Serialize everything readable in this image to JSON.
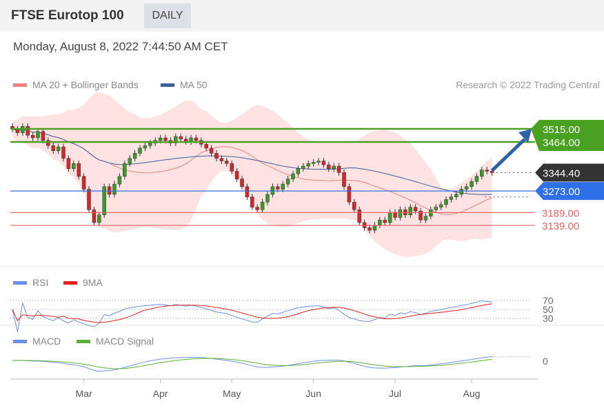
{
  "header": {
    "title": "FTSE Eurotop 100",
    "period": "DAILY"
  },
  "timestamp": "Monday, August 8, 2022 7:44:50 AM CET",
  "legend": {
    "ma20": "MA 20 + Bollinger Bands",
    "ma50": "MA 50",
    "rsi": "RSI",
    "rsi9": "9MA",
    "macd": "MACD",
    "macd_signal": "MACD Signal"
  },
  "credit": "Research © 2022 Trading Central",
  "colors": {
    "up": "#3a9a2a",
    "down": "#d0282c",
    "ma20": "#f08080",
    "ma50": "#3a5f9a",
    "band": "#ffd6d6",
    "resistance": "#4aa020",
    "pivot": "#2f6fe8",
    "support": "#f06060",
    "last": "#333333",
    "rsi": "#6c8ee8",
    "macd_signal": "#5ab030"
  },
  "chart_data": {
    "type": "candlestick",
    "months": [
      {
        "label": "Mar",
        "index": 14
      },
      {
        "label": "Apr",
        "index": 29
      },
      {
        "label": "May",
        "index": 43
      },
      {
        "label": "Jun",
        "index": 59
      },
      {
        "label": "Jul",
        "index": 75
      },
      {
        "label": "Aug",
        "index": 90
      }
    ],
    "closes": [
      3515,
      3500,
      3525,
      3490,
      3480,
      3505,
      3470,
      3450,
      3430,
      3445,
      3400,
      3360,
      3380,
      3330,
      3280,
      3200,
      3150,
      3180,
      3290,
      3260,
      3300,
      3330,
      3380,
      3400,
      3420,
      3440,
      3450,
      3460,
      3470,
      3480,
      3470,
      3460,
      3485,
      3475,
      3465,
      3480,
      3470,
      3455,
      3440,
      3420,
      3400,
      3390,
      3380,
      3350,
      3320,
      3290,
      3250,
      3210,
      3200,
      3230,
      3260,
      3290,
      3280,
      3300,
      3320,
      3340,
      3360,
      3370,
      3380,
      3385,
      3390,
      3375,
      3360,
      3370,
      3345,
      3290,
      3230,
      3200,
      3150,
      3130,
      3120,
      3140,
      3160,
      3150,
      3190,
      3170,
      3200,
      3180,
      3210,
      3195,
      3160,
      3175,
      3200,
      3210,
      3220,
      3240,
      3250,
      3260,
      3280,
      3290,
      3310,
      3330,
      3355,
      3350,
      3344.4
    ],
    "levels": [
      {
        "label": "3515.00",
        "value": 3515,
        "kind": "resistance"
      },
      {
        "label": "3464.00",
        "value": 3464,
        "kind": "resistance"
      },
      {
        "label": "3344.40",
        "value": 3344.4,
        "kind": "last"
      },
      {
        "label": "3273.00",
        "value": 3273,
        "kind": "pivot"
      },
      {
        "label": "3189.00",
        "value": 3189,
        "kind": "support"
      },
      {
        "label": "3139.00",
        "value": 3139,
        "kind": "support"
      }
    ],
    "rsi_levels": [
      {
        "label": "70",
        "value": 70
      },
      {
        "label": "50",
        "value": 50
      },
      {
        "label": "30",
        "value": 30
      }
    ],
    "macd_zero_label": "0",
    "target_arrow": {
      "from": 3344.4,
      "to": 3515
    }
  }
}
